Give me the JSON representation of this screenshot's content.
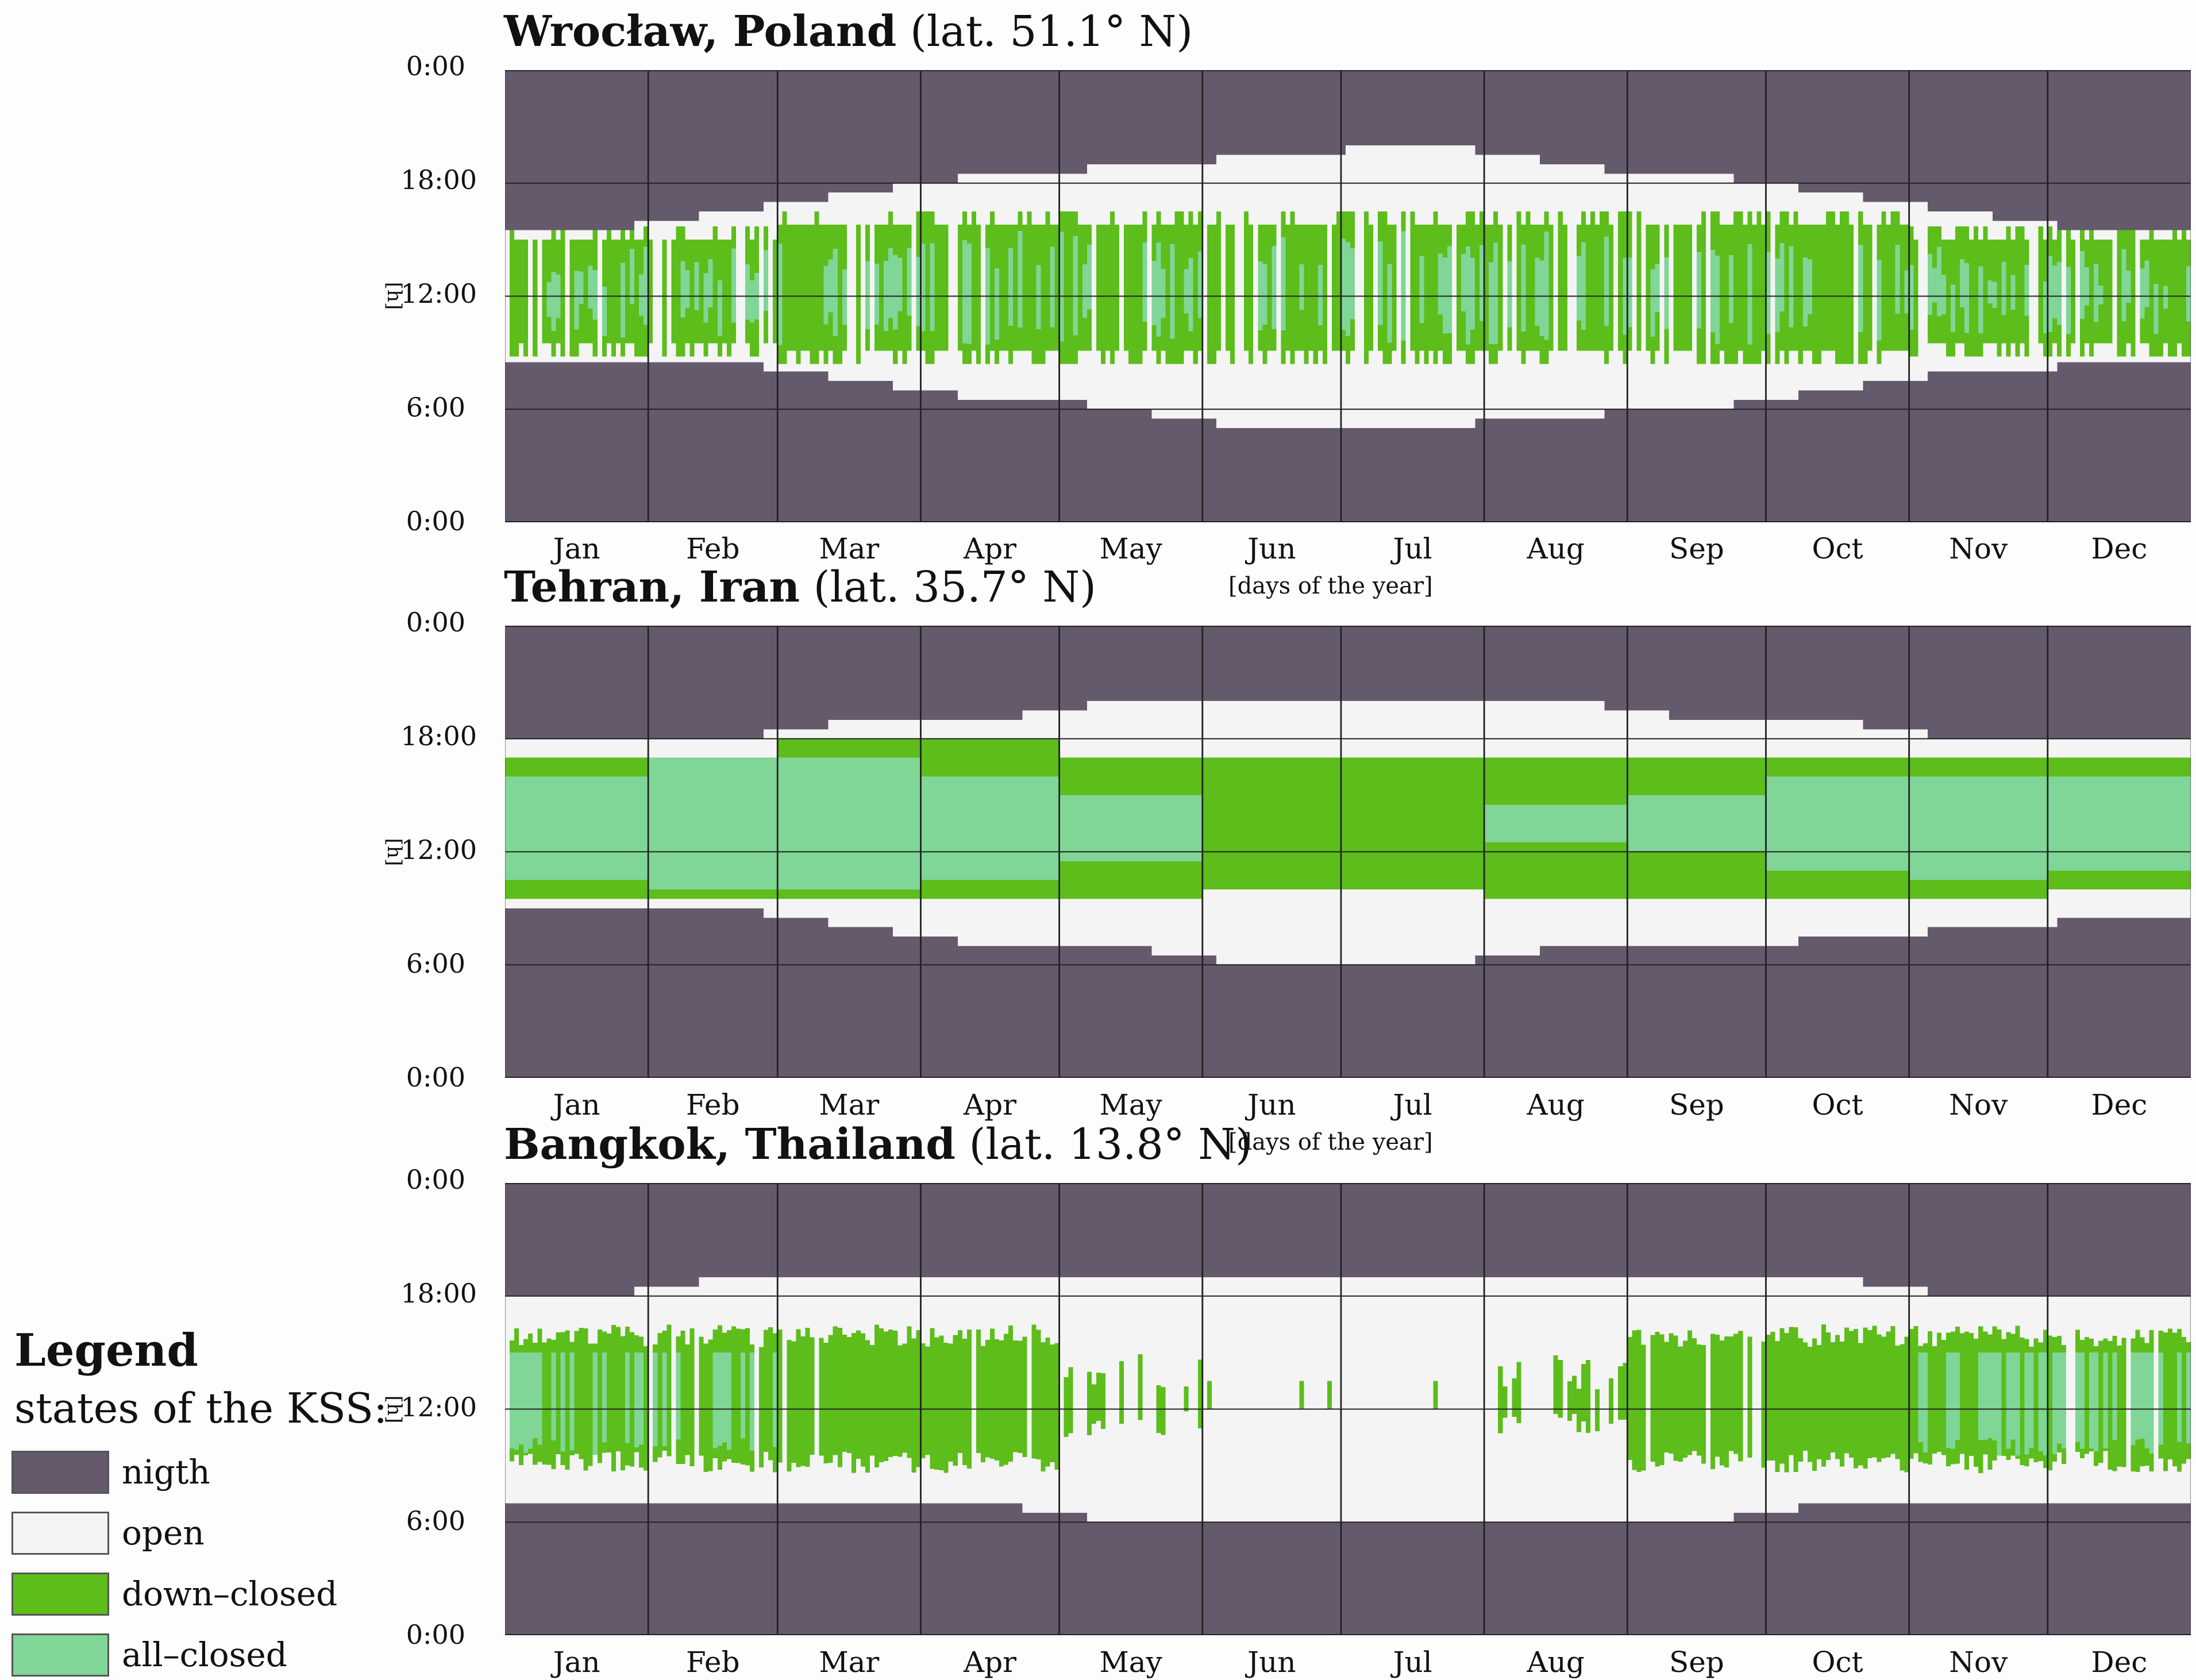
{
  "colors": {
    "night": "#655a6c",
    "open": "#f4f4f4",
    "down_closed": "#5dbd1b",
    "all_closed": "#80d696",
    "grid": "#222222"
  },
  "y_ticks": [
    "0:00",
    "18:00",
    "12:00",
    "6:00",
    "0:00"
  ],
  "y_unit": "[h]",
  "x_ticks": [
    "Jan",
    "Feb",
    "Mar",
    "Apr",
    "May",
    "Jun",
    "Jul",
    "Aug",
    "Sep",
    "Oct",
    "Nov",
    "Dec"
  ],
  "x_label": "[days of the year]",
  "legend": {
    "title": "Legend",
    "subtitle": "states of the KSS:",
    "items": [
      {
        "key": "night",
        "label": "nigth"
      },
      {
        "key": "open",
        "label": "open"
      },
      {
        "key": "down_closed",
        "label": "down–closed"
      },
      {
        "key": "all_closed",
        "label": "all–closed"
      }
    ]
  },
  "charts": [
    {
      "city": "Wrocław, Poland",
      "lat": "(lat. 51.1° N)"
    },
    {
      "city": "Tehran, Iran",
      "lat": "(lat. 35.7° N)"
    },
    {
      "city": "Bangkok, Thailand",
      "lat": "(lat. 13.8° N)"
    }
  ],
  "chart_data": [
    {
      "type": "heatmap",
      "title": "Wrocław, Poland (lat. 51.1° N)",
      "xlabel": "[days of the year]",
      "ylabel": "[h]",
      "x_categories": [
        "Jan",
        "Feb",
        "Mar",
        "Apr",
        "May",
        "Jun",
        "Jul",
        "Aug",
        "Sep",
        "Oct",
        "Nov",
        "Dec"
      ],
      "y_ticks": [
        "0:00",
        "6:00",
        "12:00",
        "18:00",
        "0:00"
      ],
      "ylim_hours": [
        0,
        24
      ],
      "legend": [
        "nigth",
        "open",
        "down-closed",
        "all-closed"
      ],
      "daylight_hours_by_month": [
        [
          8.5,
          15.5
        ],
        [
          8.5,
          16.5
        ],
        [
          7.5,
          17.5
        ],
        [
          6.5,
          18.5
        ],
        [
          6,
          19
        ],
        [
          5,
          19.5
        ],
        [
          5,
          20
        ],
        [
          5.5,
          19
        ],
        [
          6,
          18.5
        ],
        [
          7,
          17.5
        ],
        [
          8,
          16.5
        ],
        [
          8.5,
          15.5
        ]
      ],
      "shading_band_hours": [
        9.8,
        15.5
      ],
      "pattern": "highly variable daily down-closed/all-closed shading between ~9:00 and ~16:00 all year"
    },
    {
      "type": "heatmap",
      "title": "Tehran, Iran (lat. 35.7° N)",
      "xlabel": "[days of the year]",
      "ylabel": "[h]",
      "x_categories": [
        "Jan",
        "Feb",
        "Mar",
        "Apr",
        "May",
        "Jun",
        "Jul",
        "Aug",
        "Sep",
        "Oct",
        "Nov",
        "Dec"
      ],
      "y_ticks": [
        "0:00",
        "6:00",
        "12:00",
        "18:00",
        "0:00"
      ],
      "ylim_hours": [
        0,
        24
      ],
      "legend": [
        "nigth",
        "open",
        "down-closed",
        "all-closed"
      ],
      "daylight_hours_by_month": [
        [
          9,
          18
        ],
        [
          9,
          18
        ],
        [
          8,
          19
        ],
        [
          7,
          19
        ],
        [
          7,
          20
        ],
        [
          6,
          20
        ],
        [
          6,
          20
        ],
        [
          7,
          20
        ],
        [
          7,
          19
        ],
        [
          7.5,
          19
        ],
        [
          8,
          18
        ],
        [
          8.5,
          18
        ]
      ],
      "down_closed_hours_by_month": [
        [
          9.5,
          17
        ],
        [
          9.5,
          17
        ],
        [
          9.5,
          18
        ],
        [
          9.5,
          18
        ],
        [
          9.5,
          17
        ],
        [
          10,
          17
        ],
        [
          10,
          17
        ],
        [
          9.5,
          17
        ],
        [
          9.5,
          17
        ],
        [
          9.5,
          17
        ],
        [
          9.5,
          17
        ],
        [
          10,
          17
        ]
      ],
      "all_closed_hours_by_month": [
        [
          10.5,
          16
        ],
        [
          10,
          17
        ],
        [
          10,
          17
        ],
        [
          10.5,
          16
        ],
        [
          11.5,
          15
        ],
        null,
        null,
        [
          12.5,
          14.5
        ],
        [
          12,
          15
        ],
        [
          11,
          16
        ],
        [
          10.5,
          16
        ],
        [
          11,
          16
        ]
      ]
    },
    {
      "type": "heatmap",
      "title": "Bangkok, Thailand (lat. 13.8° N)",
      "xlabel": "[days of the year]",
      "ylabel": "[h]",
      "x_categories": [
        "Jan",
        "Feb",
        "Mar",
        "Apr",
        "May",
        "Jun",
        "Jul",
        "Aug",
        "Sep",
        "Oct",
        "Nov",
        "Dec"
      ],
      "y_ticks": [
        "0:00",
        "6:00",
        "12:00",
        "18:00",
        "0:00"
      ],
      "ylim_hours": [
        0,
        24
      ],
      "legend": [
        "nigth",
        "open",
        "down-closed",
        "all-closed"
      ],
      "daylight_hours_by_month": [
        [
          7,
          18
        ],
        [
          7,
          19
        ],
        [
          7,
          19
        ],
        [
          7,
          19
        ],
        [
          6,
          19
        ],
        [
          6,
          19
        ],
        [
          6,
          19
        ],
        [
          6,
          19
        ],
        [
          6,
          19
        ],
        [
          7,
          19
        ],
        [
          7,
          18
        ],
        [
          7,
          18
        ]
      ],
      "pattern": "dense down-closed/all-closed shading Jan-Apr and Sep-Dec (~8:30-16:30); sparse/none May-Aug (open)"
    }
  ]
}
